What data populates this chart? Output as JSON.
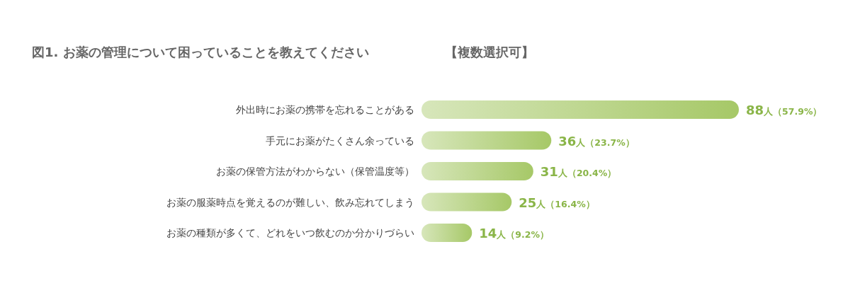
{
  "chart_data": {
    "type": "bar",
    "orientation": "horizontal",
    "title": "図1. お薬の管理について困っていることを教えてください",
    "subtitle": "【複数選択可】",
    "categories": [
      "外出時にお薬の携帯を忘れることがある",
      "手元にお薬がたくさん余っている",
      "お薬の保管方法がわからない（保管温度等）",
      "お薬の服薬時点を覚えるのが難しい、飲み忘れてしまう",
      "お薬の種類が多くて、どれをいつ飲むのか分かりづらい"
    ],
    "values": [
      88,
      36,
      31,
      25,
      14
    ],
    "value_labels": [
      "88人（57.9%）",
      "36人（23.7%）",
      "31人（20.4%）",
      "25人（16.4%）",
      "14人（9.2%）"
    ],
    "color": "#a6c867"
  }
}
